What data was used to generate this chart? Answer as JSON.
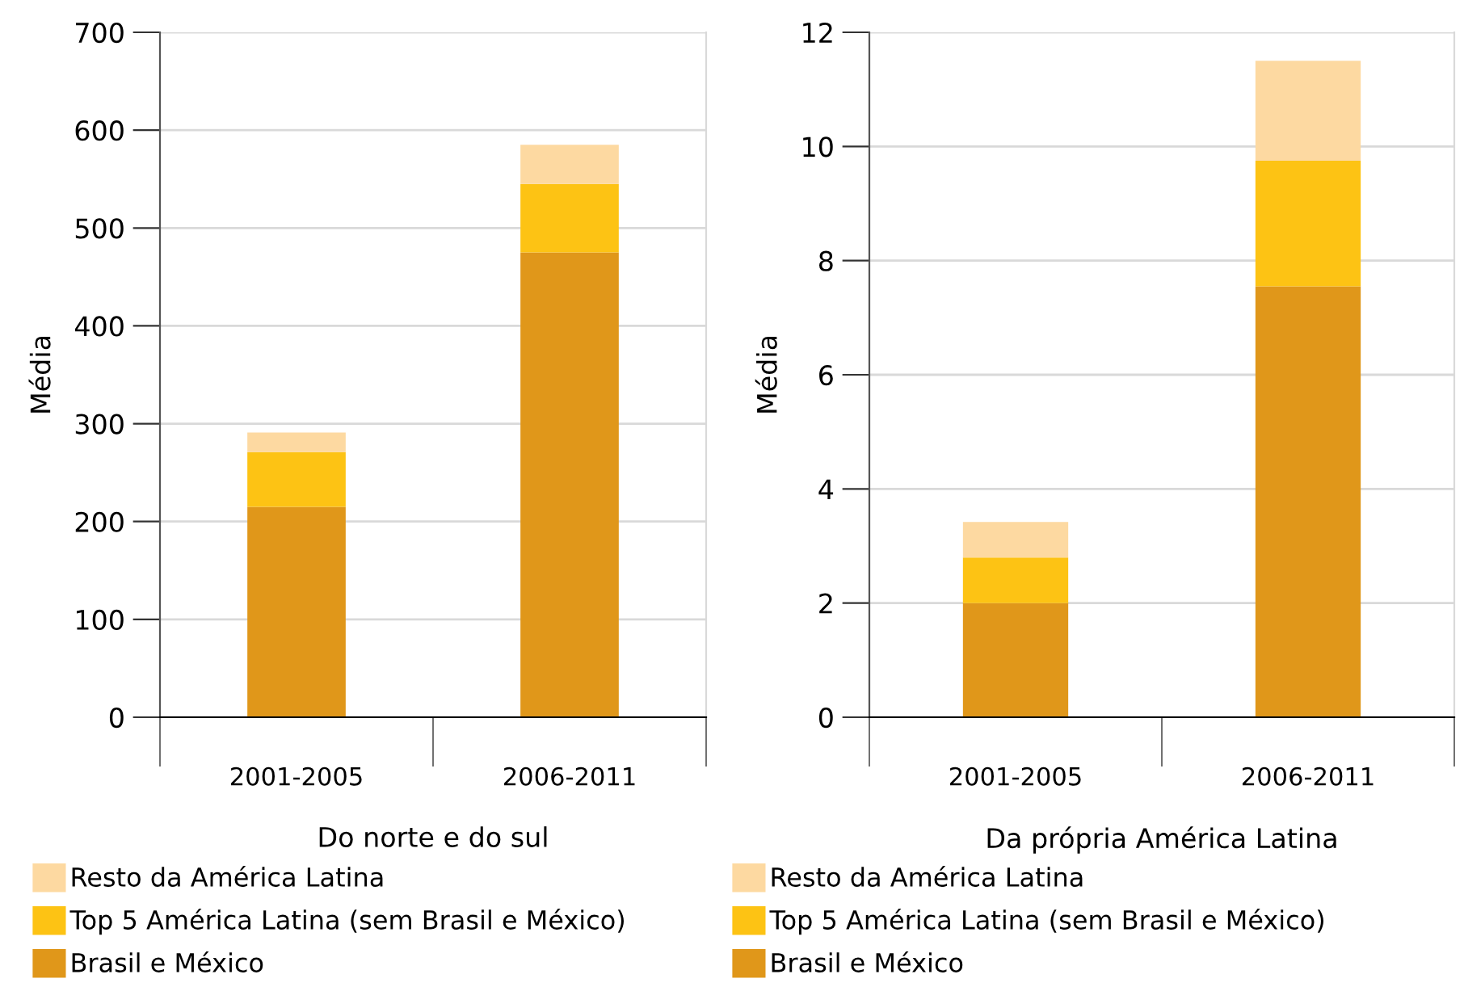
{
  "chart_data": [
    {
      "type": "bar",
      "stacked": true,
      "xlabel": "Do norte e do sul",
      "ylabel": "Média",
      "categories": [
        "2001-2005",
        "2006-2011"
      ],
      "ylim": [
        0,
        700
      ],
      "yticks": [
        0,
        100,
        200,
        300,
        400,
        500,
        600,
        700
      ],
      "grid": "y",
      "legend": "bottom",
      "series": [
        {
          "name": "Brasil e México",
          "color": "#e0971a",
          "values": [
            215,
            475
          ]
        },
        {
          "name": "Top 5 América Latina (sem Brasil e México)",
          "color": "#fdc314",
          "values": [
            56,
            70
          ]
        },
        {
          "name": "Resto da América Latina",
          "color": "#fdd9a1",
          "values": [
            20,
            40
          ]
        }
      ]
    },
    {
      "type": "bar",
      "stacked": true,
      "xlabel": "Da própria América Latina",
      "ylabel": "Média",
      "categories": [
        "2001-2005",
        "2006-2011"
      ],
      "ylim": [
        0,
        12
      ],
      "yticks": [
        0,
        2,
        4,
        6,
        8,
        10,
        12
      ],
      "grid": "y",
      "legend": "bottom",
      "series": [
        {
          "name": "Brasil e México",
          "color": "#e0971a",
          "values": [
            2.0,
            7.55
          ]
        },
        {
          "name": "Top 5 América Latina (sem Brasil e México)",
          "color": "#fdc314",
          "values": [
            0.8,
            2.2
          ]
        },
        {
          "name": "Resto da América Latina",
          "color": "#fdd9a1",
          "values": [
            0.62,
            1.75
          ]
        }
      ]
    }
  ]
}
